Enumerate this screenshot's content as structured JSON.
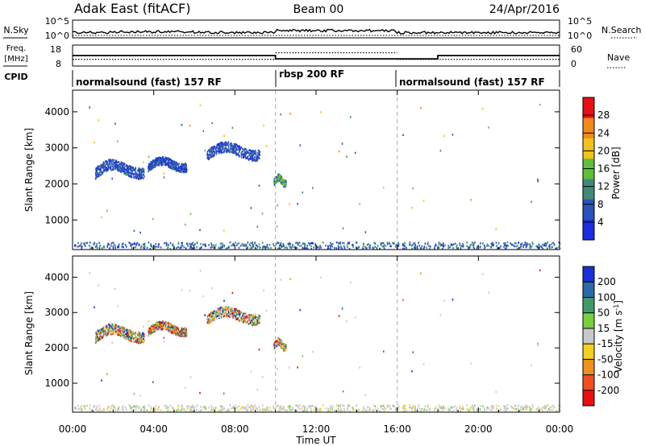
{
  "header": {
    "radar": "Adak East (fitACF)",
    "beam": "Beam 00",
    "date": "24/Apr/2016"
  },
  "noise_panel": {
    "left_label": "N.Sky",
    "right_label": "N.Search",
    "left_ticks": [
      "10^5",
      "10^0"
    ],
    "right_ticks": [
      "10^5",
      "10^0"
    ]
  },
  "freq_panel": {
    "left_label_1": "Freq.",
    "left_label_2": "[MHz]",
    "right_label": "Nave",
    "left_ticks": [
      "18",
      "8"
    ],
    "right_ticks": [
      "60",
      "0"
    ],
    "freq_segments": [
      {
        "start": 0,
        "end": 10,
        "freq": 13.0
      },
      {
        "start": 10,
        "end": 18,
        "freq": 11.4
      },
      {
        "start": 18,
        "end": 24,
        "freq": 13.0
      }
    ],
    "nave_segments": [
      {
        "start": 0,
        "end": 10,
        "nave": 19
      },
      {
        "start": 10,
        "end": 16,
        "nave": 38
      },
      {
        "start": 16,
        "end": 24,
        "nave": 19
      }
    ]
  },
  "cpid": {
    "label": "CPID",
    "segments": [
      {
        "start": 0,
        "end": 10,
        "label": "normalsound (fast) 157 RF"
      },
      {
        "start": 10,
        "end": 16,
        "label": "rbsp 200 RF"
      },
      {
        "start": 16,
        "end": 24,
        "label": "normalsound (fast) 157 RF"
      }
    ]
  },
  "axes": {
    "ylabel": "Slant Range [km]",
    "yticks": [
      "1000",
      "2000",
      "3000",
      "4000"
    ],
    "xticks": [
      "00:00",
      "04:00",
      "08:00",
      "12:00",
      "16:00",
      "20:00",
      "00:00"
    ],
    "xlabel": "Time UT"
  },
  "power_scale": {
    "label": "Power [dB]",
    "ticks": [
      "4",
      "8",
      "12",
      "16",
      "20",
      "24",
      "28"
    ],
    "colors": [
      "#1c2ee0",
      "#2a52b8",
      "#3f8a78",
      "#5cc038",
      "#f2c21a",
      "#f08a18",
      "#e81010"
    ]
  },
  "velocity_scale": {
    "label_main": "Velocity [m s",
    "label_sup": "-1",
    "label_end": "]",
    "ticks": [
      "200",
      "100",
      "50",
      "15",
      "-15",
      "-50",
      "-100",
      "-200"
    ],
    "colors": [
      "#1830d8",
      "#2a6aa8",
      "#3f9a68",
      "#78d040",
      "#c8c8c8",
      "#f4d020",
      "#f09020",
      "#f05020",
      "#e81010"
    ]
  },
  "chart_data": {
    "type": "heatmap",
    "title": "Adak East (fitACF)   Beam 00   24/Apr/2016",
    "xlabel": "Time UT",
    "ylabel": "Slant Range [km]",
    "xlim": [
      0,
      24
    ],
    "ylim": [
      180,
      4600
    ],
    "mode_boundaries_hours": [
      10,
      16
    ],
    "echo_regions": [
      {
        "name": "F-region arc 1",
        "x": [
          1.1,
          3.5
        ],
        "range_start": 2050,
        "range_end": 2720,
        "power_dB": 6
      },
      {
        "name": "F-region arc 2",
        "x": [
          3.7,
          5.6
        ],
        "range_start": 2250,
        "range_end": 2780,
        "power_dB": 6
      },
      {
        "name": "F-region arc 3",
        "x": [
          6.6,
          9.2
        ],
        "range_start": 2550,
        "range_end": 3200,
        "power_dB": 6
      },
      {
        "name": "rbsp patch",
        "x": [
          9.9,
          10.5
        ],
        "range_start": 1850,
        "range_end": 2300,
        "power_dB": 12
      },
      {
        "name": "near-range ground clutter",
        "x": [
          0,
          24
        ],
        "range_start": 200,
        "range_end": 380,
        "power_dB": 8
      }
    ]
  }
}
